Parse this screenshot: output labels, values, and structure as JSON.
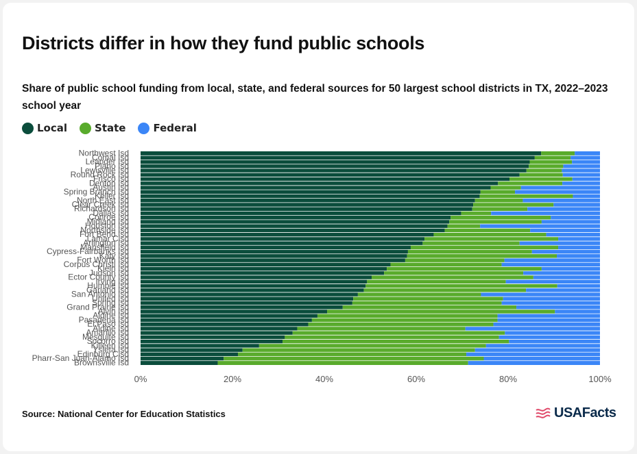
{
  "title": "Districts differ in how they fund public schools",
  "subtitle": "Share of public school funding from local, state, and federal sources for 50 largest school districts in TX, 2022–2023 school year",
  "source": "Source: National Center for Education Statistics",
  "brand": "USAFacts",
  "colors": {
    "local": "#0b4d3c",
    "state": "#59ab2c",
    "federal": "#3b86f7"
  },
  "chart_data": {
    "type": "bar",
    "orientation": "horizontal",
    "stacked": true,
    "xlim": [
      0,
      100
    ],
    "x_ticks": [
      "0%",
      "20%",
      "40%",
      "60%",
      "80%",
      "100%"
    ],
    "categories": [
      "Northwest Isd",
      "Comal Isd",
      "Leander Isd",
      "Plano Isd",
      "Lewisville Isd",
      "Round Rock Isd",
      "Frisco Isd",
      "Denton Isd",
      "Austin Isd",
      "Spring Branch Isd",
      "Keller Isd",
      "North East Isd",
      "Clear Creek Isd",
      "Richardson Isd",
      "Dallas Isd",
      "Conroe Isd",
      "Midland Isd",
      "Houston Isd",
      "Northside Isd",
      "Fort Bend Isd",
      "Lamar Cisd",
      "Arlington Isd",
      "Mansfield Isd",
      "Cypress-Fairbanks Isd",
      "Katy Isd",
      "Fort Worth Isd",
      "Corpus Christi Isd",
      "Klein Isd",
      "Judson Isd",
      "Ector County Isd",
      "Irving Isd",
      "Humble Isd",
      "Garland Isd",
      "San Antonio Isd",
      "United Isd",
      "Spring Isd",
      "Grand Prairie Isd",
      "Alvin Isd",
      "Aldine Isd",
      "Pasadena Isd",
      "El Paso Isd",
      "Aldine Isd",
      "Amarillo Isd",
      "Mesquite Isd",
      "Socorro Isd",
      "Killeen Isd",
      "Ysleta Isd",
      "Edinburg Cisd",
      "Pharr-San Juan-Alamo Isd",
      "Brownsville Isd"
    ],
    "series": [
      {
        "name": "Local",
        "values": [
          87.2,
          85.8,
          84.7,
          84.5,
          84.0,
          82.5,
          80.3,
          77.8,
          76.2,
          74.0,
          73.8,
          72.8,
          72.4,
          72.2,
          69.8,
          67.5,
          67.2,
          66.8,
          66.2,
          63.8,
          61.8,
          61.4,
          58.8,
          58.2,
          58.0,
          57.6,
          54.4,
          53.6,
          53.0,
          50.3,
          49.3,
          49.0,
          48.6,
          47.3,
          46.3,
          46.1,
          44.0,
          40.6,
          38.5,
          37.3,
          36.5,
          34.1,
          33.1,
          31.4,
          30.9,
          25.8,
          22.2,
          21.2,
          18.1,
          16.8
        ]
      },
      {
        "name": "State",
        "values": [
          7.3,
          7.8,
          9.2,
          7.5,
          7.7,
          9.4,
          13.7,
          14.0,
          6.6,
          7.5,
          20.3,
          10.4,
          17.5,
          12.0,
          6.5,
          21.8,
          20.1,
          7.1,
          18.6,
          24.5,
          29.1,
          21.1,
          32.1,
          27.0,
          32.6,
          21.6,
          24.2,
          33.7,
          30.3,
          35.2,
          30.2,
          41.7,
          35.3,
          26.8,
          32.6,
          32.5,
          37.8,
          49.6,
          39.2,
          40.4,
          40.3,
          36.6,
          46.2,
          46.6,
          49.3,
          49.4,
          50.6,
          49.7,
          56.6,
          54.5
        ]
      },
      {
        "name": "Federal",
        "values": [
          5.5,
          6.4,
          6.1,
          8.0,
          8.3,
          8.1,
          6.0,
          8.2,
          17.2,
          18.5,
          5.9,
          16.8,
          10.1,
          15.8,
          23.7,
          10.7,
          12.7,
          26.1,
          15.2,
          11.7,
          9.1,
          17.5,
          9.1,
          14.8,
          9.4,
          20.8,
          21.4,
          12.7,
          16.7,
          14.5,
          20.5,
          9.3,
          16.1,
          25.9,
          21.1,
          21.4,
          18.2,
          9.8,
          22.3,
          22.3,
          23.2,
          29.3,
          20.7,
          22.0,
          19.8,
          24.8,
          27.2,
          29.1,
          25.3,
          28.7
        ]
      }
    ]
  }
}
